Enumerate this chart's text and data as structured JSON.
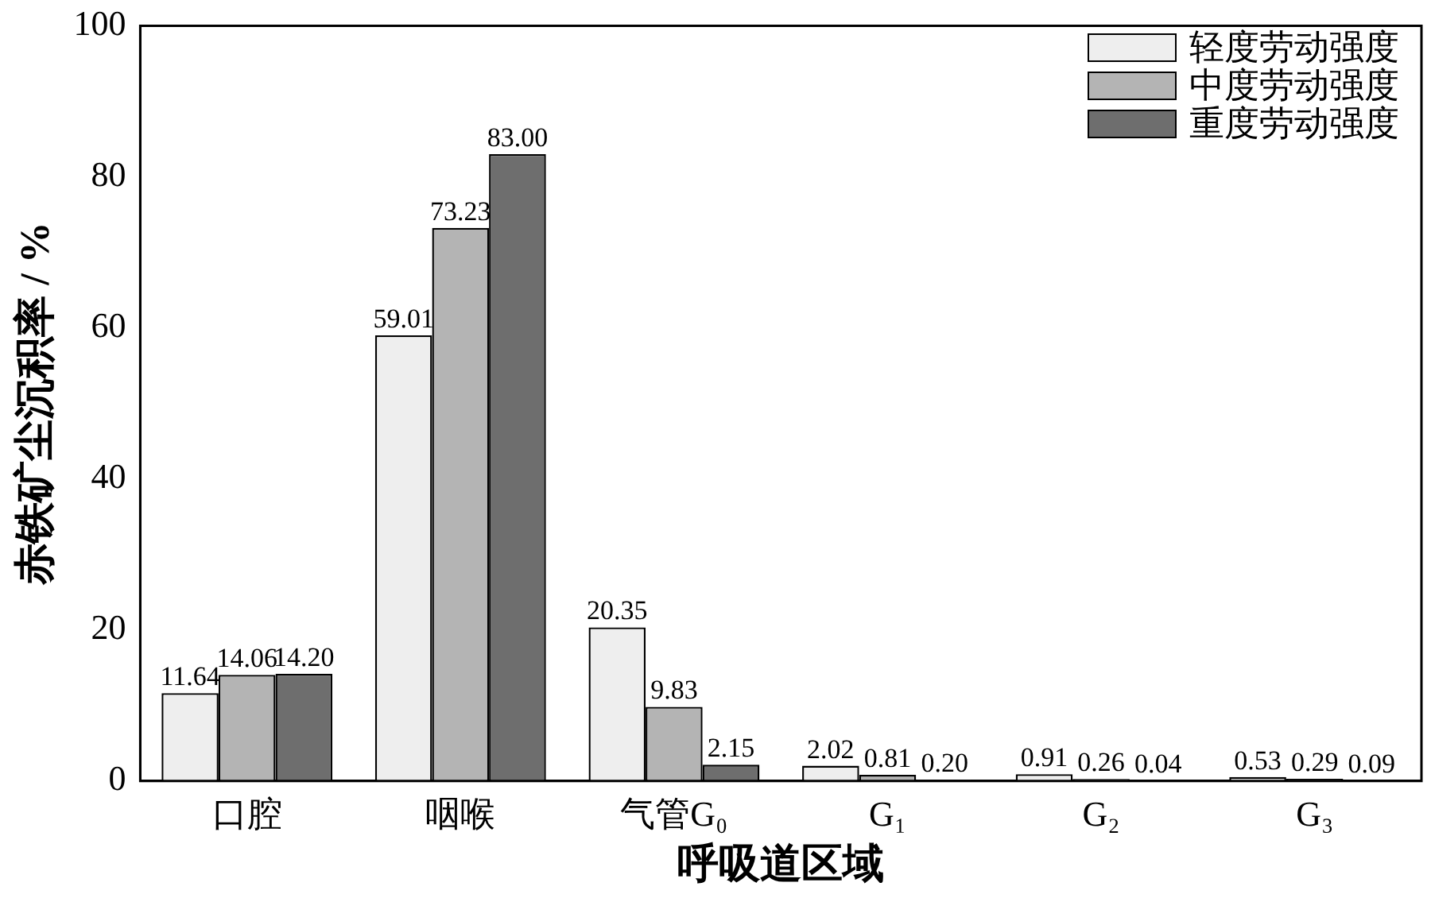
{
  "chart_data": {
    "type": "bar",
    "xlabel": "呼吸道区域",
    "ylabel": "赤铁矿尘沉积率 / %",
    "categories": [
      "口腔",
      "咽喉",
      "气管G₀",
      "G₁",
      "G₂",
      "G₃"
    ],
    "series": [
      {
        "name": "轻度劳动强度",
        "color": "#eeeeee",
        "values": [
          11.64,
          59.01,
          20.35,
          2.02,
          0.91,
          0.53
        ],
        "value_labels": [
          "11.64",
          "59.01",
          "20.35",
          "2.02",
          "0.91",
          "0.53"
        ]
      },
      {
        "name": "中度劳动强度",
        "color": "#b4b4b4",
        "values": [
          14.06,
          73.23,
          9.83,
          0.81,
          0.26,
          0.29
        ],
        "value_labels": [
          "14.06",
          "73.23",
          "9.83",
          "0.81",
          "0.26",
          "0.29"
        ]
      },
      {
        "name": "重度劳动强度",
        "color": "#6e6e6e",
        "values": [
          14.2,
          83.0,
          2.15,
          0.2,
          0.04,
          0.09
        ],
        "value_labels": [
          "14.20",
          "83.00",
          "2.15",
          "0.20",
          "0.04",
          "0.09"
        ]
      }
    ],
    "ylim": [
      0,
      100
    ],
    "yticks": [
      0,
      20,
      40,
      60,
      80,
      100
    ],
    "grid": false,
    "legend": "top right"
  }
}
